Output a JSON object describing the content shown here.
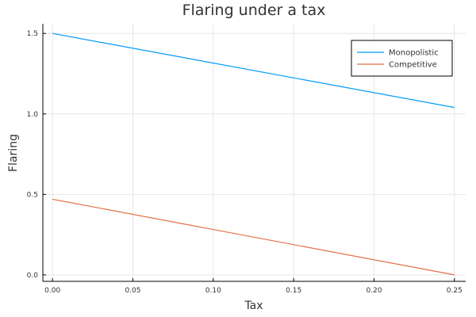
{
  "chart_data": {
    "type": "line",
    "title": "Flaring under a tax",
    "xlabel": "Tax",
    "ylabel": "Flaring",
    "xlim": [
      -0.006,
      0.257
    ],
    "ylim": [
      -0.04,
      1.56
    ],
    "xticks": [
      0.0,
      0.05,
      0.1,
      0.15,
      0.2,
      0.25
    ],
    "xtick_labels": [
      "0.00",
      "0.05",
      "0.10",
      "0.15",
      "0.20",
      "0.25"
    ],
    "yticks": [
      0.0,
      0.5,
      1.0,
      1.5
    ],
    "ytick_labels": [
      "0.0",
      "0.5",
      "1.0",
      "1.5"
    ],
    "grid": true,
    "legend_position": "top-right",
    "series": [
      {
        "name": "Monopolistic",
        "color": "#009AFA",
        "x": [
          0.0,
          0.25
        ],
        "y": [
          1.5,
          1.04
        ]
      },
      {
        "name": "Competitive",
        "color": "#E26F46",
        "x": [
          0.0,
          0.25
        ],
        "y": [
          0.47,
          0.0
        ]
      }
    ]
  }
}
